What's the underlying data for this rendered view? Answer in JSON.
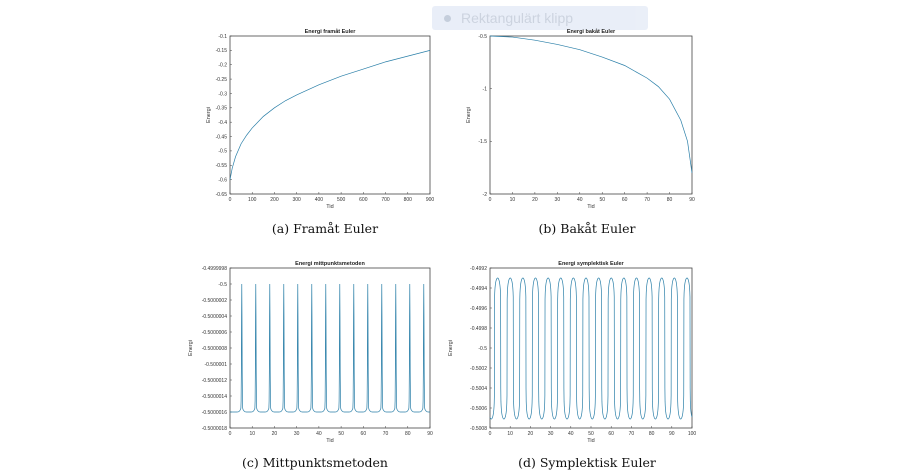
{
  "overlay": {
    "label": "Rektangulärt klipp"
  },
  "chart_data": [
    {
      "type": "line",
      "title": "Energi framåt Euler",
      "xlabel": "Tid",
      "ylabel": "Energi",
      "xlim": [
        0,
        900
      ],
      "ylim": [
        -0.65,
        -0.1
      ],
      "xticks": [
        0,
        100,
        200,
        300,
        400,
        500,
        600,
        700,
        800,
        900
      ],
      "yticks": [
        -0.1,
        -0.15,
        -0.2,
        -0.25,
        -0.3,
        -0.35,
        -0.4,
        -0.45,
        -0.5,
        -0.55,
        -0.6,
        -0.65
      ],
      "series": [
        {
          "color": "#2a7fa8",
          "x": [
            0,
            10,
            25,
            50,
            75,
            100,
            150,
            200,
            250,
            300,
            400,
            500,
            600,
            700,
            800,
            900
          ],
          "y": [
            -0.6,
            -0.56,
            -0.52,
            -0.475,
            -0.445,
            -0.42,
            -0.38,
            -0.35,
            -0.325,
            -0.305,
            -0.27,
            -0.24,
            -0.215,
            -0.19,
            -0.17,
            -0.15
          ]
        }
      ],
      "caption": "(a) Framåt Euler"
    },
    {
      "type": "line",
      "title": "Energi bakåt Euler",
      "xlabel": "Tid",
      "ylabel": "Energi",
      "xlim": [
        0,
        90
      ],
      "ylim": [
        -2,
        -0.5
      ],
      "xticks": [
        0,
        10,
        20,
        30,
        40,
        50,
        60,
        70,
        80,
        90
      ],
      "yticks": [
        -0.5,
        -1,
        -1.5,
        -2
      ],
      "series": [
        {
          "color": "#2a7fa8",
          "x": [
            0,
            10,
            20,
            30,
            40,
            50,
            60,
            70,
            75,
            80,
            85,
            88,
            90
          ],
          "y": [
            -0.5,
            -0.51,
            -0.54,
            -0.58,
            -0.63,
            -0.7,
            -0.78,
            -0.9,
            -0.98,
            -1.1,
            -1.3,
            -1.5,
            -1.8
          ]
        }
      ],
      "caption": "(b) Bakåt Euler"
    },
    {
      "type": "line",
      "title": "Energi mittpunktsmetoden",
      "xlabel": "Tid",
      "ylabel": "Energi",
      "xlim": [
        0,
        90
      ],
      "ylim": [
        -0.5000018,
        -0.4999998
      ],
      "xticks": [
        0,
        10,
        20,
        30,
        40,
        50,
        60,
        70,
        80,
        90
      ],
      "yticks": [
        -0.4999998,
        -0.5,
        -0.5000002,
        -0.5000004,
        -0.5000006,
        -0.5000008,
        -0.500001,
        -0.5000012,
        -0.5000014,
        -0.5000016,
        -0.5000018
      ],
      "ytick_labels": [
        "-0.4999998",
        "-0.5",
        "-0.5000002",
        "-0.5000004",
        "-0.5000006",
        "-0.5000008",
        "-0.500001",
        "-0.5000012",
        "-0.5000014",
        "-0.5000016",
        "-0.5000018"
      ],
      "oscillation": {
        "peaks_x": [
          5.3,
          11.6,
          17.9,
          24.2,
          30.5,
          36.8,
          43.1,
          49.4,
          55.7,
          62.0,
          68.3,
          74.6,
          80.9,
          87.2
        ],
        "peak_y": -0.5,
        "base_y": -0.5000016
      },
      "series": [
        {
          "color": "#2a7fa8"
        }
      ],
      "caption": "(c) Mittpunktsmetoden"
    },
    {
      "type": "line",
      "title": "Energi symplektisk Euler",
      "xlabel": "Tid",
      "ylabel": "Energi",
      "xlim": [
        0,
        100
      ],
      "ylim": [
        -0.5008,
        -0.4992
      ],
      "xticks": [
        0,
        10,
        20,
        30,
        40,
        50,
        60,
        70,
        80,
        90,
        100
      ],
      "yticks": [
        -0.4992,
        -0.4994,
        -0.4996,
        -0.4998,
        -0.5,
        -0.5002,
        -0.5004,
        -0.5006,
        -0.5008
      ],
      "ytick_labels": [
        "-0.4992",
        "-0.4994",
        "-0.4996",
        "-0.4998",
        "-0.5",
        "-0.5002",
        "-0.5004",
        "-0.5006",
        "-0.5008"
      ],
      "oscillation": {
        "period": 6.25,
        "phase": 2.2,
        "max_y": -0.4993,
        "min_y": -0.50071
      },
      "series": [
        {
          "color": "#2a7fa8"
        }
      ],
      "caption": "(d) Symplektisk Euler"
    }
  ]
}
